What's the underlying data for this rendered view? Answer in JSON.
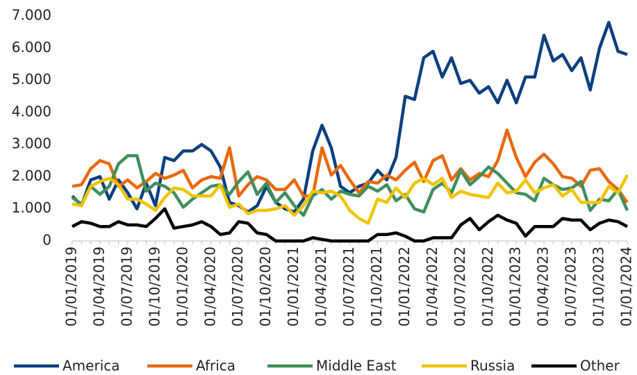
{
  "chart_data": {
    "type": "line",
    "categories": [
      "01/01/2019",
      null,
      null,
      "01/04/2019",
      null,
      null,
      "01/07/2019",
      null,
      null,
      "01/10/2019",
      null,
      null,
      "01/01/2020",
      null,
      null,
      "01/04/2020",
      null,
      null,
      "01/07/2020",
      null,
      null,
      "01/10/2020",
      null,
      null,
      "01/01/2021",
      null,
      null,
      "01/04/2021",
      null,
      null,
      "01/07/2021",
      null,
      null,
      "01/10/2021",
      null,
      null,
      "01/01/2022",
      null,
      null,
      "01/04/2022",
      null,
      null,
      "01/07/2022",
      null,
      null,
      "01/10/2022",
      null,
      null,
      "01/01/2023",
      null,
      null,
      "01/04/2023",
      null,
      null,
      "01/07/2023",
      null,
      null,
      "01/10/2023",
      null,
      null,
      "01/01/2024"
    ],
    "series": [
      {
        "name": "America",
        "color": "#0c3f80",
        "values": [
          1400,
          1100,
          1900,
          2000,
          1300,
          1900,
          1500,
          1000,
          1800,
          1100,
          2600,
          2500,
          2800,
          2800,
          3000,
          2800,
          2300,
          1200,
          1100,
          900,
          1100,
          1700,
          1200,
          1000,
          900,
          1300,
          2800,
          3600,
          2900,
          1700,
          1500,
          1700,
          1800,
          2200,
          1900,
          2600,
          4500,
          4400,
          5700,
          5900,
          5100,
          5700,
          4900,
          5000,
          4600,
          4800,
          4300,
          5000,
          4300,
          5100,
          5100,
          6400,
          5600,
          5800,
          5300,
          5700,
          4700,
          6000,
          6800,
          5900,
          5800
        ]
      },
      {
        "name": "Africa",
        "color": "#e8690b",
        "values": [
          1700,
          1750,
          2250,
          2500,
          2400,
          1700,
          1900,
          1650,
          1850,
          2100,
          1950,
          2050,
          2200,
          1650,
          1900,
          2000,
          1950,
          2900,
          1400,
          1750,
          2000,
          1900,
          1600,
          1600,
          1900,
          1400,
          1400,
          2900,
          2050,
          2350,
          1900,
          1500,
          1850,
          1800,
          2050,
          1900,
          2200,
          2450,
          1850,
          2500,
          2650,
          1900,
          2250,
          1900,
          2100,
          2000,
          2500,
          3450,
          2600,
          2000,
          2450,
          2700,
          2400,
          2000,
          1950,
          1700,
          2200,
          2250,
          1850,
          1600,
          1200
        ]
      },
      {
        "name": "Middle East",
        "color": "#3f8f5b",
        "values": [
          1350,
          1150,
          1700,
          1450,
          1700,
          2400,
          2650,
          2650,
          1550,
          1800,
          1700,
          1500,
          1050,
          1300,
          1500,
          1700,
          1750,
          1450,
          1850,
          2150,
          1450,
          1800,
          1200,
          1500,
          1100,
          800,
          1400,
          1600,
          1300,
          1550,
          1450,
          1400,
          1700,
          1550,
          1750,
          1250,
          1450,
          1000,
          900,
          1600,
          1800,
          1500,
          2200,
          1750,
          2000,
          2300,
          2100,
          1800,
          1500,
          1450,
          1250,
          1950,
          1750,
          1600,
          1650,
          1850,
          950,
          1300,
          1250,
          1600,
          950
        ]
      },
      {
        "name": "Russia",
        "color": "#f2c200",
        "values": [
          1150,
          1100,
          1700,
          1850,
          1950,
          1750,
          1300,
          1300,
          1150,
          950,
          1350,
          1650,
          1600,
          1400,
          1400,
          1400,
          1750,
          1050,
          1150,
          850,
          950,
          950,
          1000,
          1100,
          800,
          1100,
          1550,
          1500,
          1550,
          1400,
          950,
          700,
          550,
          1300,
          1200,
          1650,
          1350,
          1800,
          1950,
          1750,
          1950,
          1350,
          1550,
          1450,
          1400,
          1350,
          1800,
          1500,
          1550,
          1900,
          1500,
          1650,
          1750,
          1400,
          1600,
          1200,
          1200,
          1200,
          1700,
          1500,
          2050
        ]
      },
      {
        "name": "Other",
        "color": "#000000",
        "values": [
          450,
          600,
          550,
          450,
          450,
          600,
          500,
          500,
          450,
          700,
          1000,
          400,
          450,
          500,
          600,
          450,
          200,
          250,
          600,
          550,
          250,
          200,
          0,
          0,
          0,
          0,
          100,
          50,
          0,
          0,
          0,
          0,
          0,
          200,
          200,
          250,
          150,
          0,
          0,
          100,
          100,
          100,
          500,
          700,
          350,
          600,
          800,
          650,
          550,
          150,
          450,
          450,
          450,
          700,
          650,
          650,
          350,
          550,
          650,
          600,
          450
        ]
      }
    ],
    "ylim": [
      0,
      7000
    ],
    "yticks": [
      0,
      {
        "value": 1000,
        "label": "1.000"
      },
      {
        "value": 2000,
        "label": "2.000"
      },
      {
        "value": 3000,
        "label": "3.000"
      },
      {
        "value": 4000,
        "label": "4.000"
      },
      {
        "value": 5000,
        "label": "5.000"
      },
      {
        "value": 6000,
        "label": "6.000"
      },
      {
        "value": 7000,
        "label": "7.000"
      }
    ],
    "grid": false,
    "legend": "bottom"
  }
}
